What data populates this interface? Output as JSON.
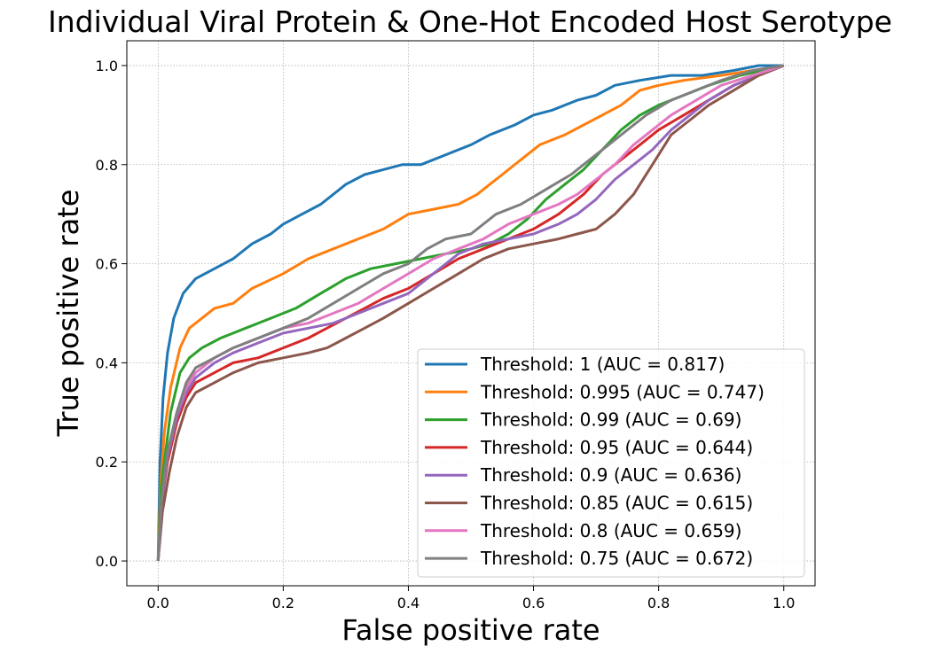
{
  "chart_data": {
    "type": "line",
    "title": "Individual Viral Protein & One-Hot Encoded Host Serotype",
    "xlabel": "False positive rate",
    "ylabel": "True positive rate",
    "xlim": [
      -0.05,
      1.05
    ],
    "ylim": [
      -0.05,
      1.05
    ],
    "x_ticks": [
      "0.0",
      "0.2",
      "0.4",
      "0.6",
      "0.8",
      "1.0"
    ],
    "y_ticks": [
      "0.0",
      "0.2",
      "0.4",
      "0.6",
      "0.8",
      "1.0"
    ],
    "grid": true,
    "legend_position": "lower right",
    "series": [
      {
        "name": "Threshold: 1 (AUC = 0.817)",
        "color": "#1f77b4",
        "points": [
          [
            0,
            0
          ],
          [
            0.003,
            0.2
          ],
          [
            0.008,
            0.33
          ],
          [
            0.015,
            0.42
          ],
          [
            0.025,
            0.49
          ],
          [
            0.04,
            0.54
          ],
          [
            0.06,
            0.57
          ],
          [
            0.09,
            0.59
          ],
          [
            0.12,
            0.61
          ],
          [
            0.15,
            0.64
          ],
          [
            0.18,
            0.66
          ],
          [
            0.2,
            0.68
          ],
          [
            0.23,
            0.7
          ],
          [
            0.26,
            0.72
          ],
          [
            0.28,
            0.74
          ],
          [
            0.3,
            0.76
          ],
          [
            0.33,
            0.78
          ],
          [
            0.36,
            0.79
          ],
          [
            0.39,
            0.8
          ],
          [
            0.42,
            0.8
          ],
          [
            0.44,
            0.81
          ],
          [
            0.46,
            0.82
          ],
          [
            0.5,
            0.84
          ],
          [
            0.53,
            0.86
          ],
          [
            0.57,
            0.88
          ],
          [
            0.6,
            0.9
          ],
          [
            0.63,
            0.91
          ],
          [
            0.67,
            0.93
          ],
          [
            0.7,
            0.94
          ],
          [
            0.73,
            0.96
          ],
          [
            0.77,
            0.97
          ],
          [
            0.82,
            0.98
          ],
          [
            0.87,
            0.98
          ],
          [
            0.92,
            0.99
          ],
          [
            0.96,
            1.0
          ],
          [
            1,
            1
          ]
        ]
      },
      {
        "name": "Threshold: 0.995 (AUC = 0.747)",
        "color": "#ff7f0e",
        "points": [
          [
            0,
            0
          ],
          [
            0.004,
            0.15
          ],
          [
            0.01,
            0.26
          ],
          [
            0.02,
            0.35
          ],
          [
            0.035,
            0.43
          ],
          [
            0.05,
            0.47
          ],
          [
            0.07,
            0.49
          ],
          [
            0.09,
            0.51
          ],
          [
            0.12,
            0.52
          ],
          [
            0.15,
            0.55
          ],
          [
            0.2,
            0.58
          ],
          [
            0.24,
            0.61
          ],
          [
            0.28,
            0.63
          ],
          [
            0.32,
            0.65
          ],
          [
            0.36,
            0.67
          ],
          [
            0.4,
            0.7
          ],
          [
            0.44,
            0.71
          ],
          [
            0.48,
            0.72
          ],
          [
            0.51,
            0.74
          ],
          [
            0.53,
            0.76
          ],
          [
            0.55,
            0.78
          ],
          [
            0.58,
            0.81
          ],
          [
            0.61,
            0.84
          ],
          [
            0.65,
            0.86
          ],
          [
            0.68,
            0.88
          ],
          [
            0.71,
            0.9
          ],
          [
            0.74,
            0.92
          ],
          [
            0.77,
            0.95
          ],
          [
            0.8,
            0.96
          ],
          [
            0.84,
            0.97
          ],
          [
            0.9,
            0.98
          ],
          [
            0.95,
            0.99
          ],
          [
            1,
            1
          ]
        ]
      },
      {
        "name": "Threshold: 0.99 (AUC = 0.69)",
        "color": "#2ca02c",
        "points": [
          [
            0,
            0
          ],
          [
            0.005,
            0.15
          ],
          [
            0.012,
            0.22
          ],
          [
            0.02,
            0.3
          ],
          [
            0.035,
            0.38
          ],
          [
            0.05,
            0.41
          ],
          [
            0.07,
            0.43
          ],
          [
            0.1,
            0.45
          ],
          [
            0.14,
            0.47
          ],
          [
            0.18,
            0.49
          ],
          [
            0.22,
            0.51
          ],
          [
            0.26,
            0.54
          ],
          [
            0.3,
            0.57
          ],
          [
            0.34,
            0.59
          ],
          [
            0.38,
            0.6
          ],
          [
            0.42,
            0.61
          ],
          [
            0.46,
            0.62
          ],
          [
            0.5,
            0.63
          ],
          [
            0.53,
            0.64
          ],
          [
            0.56,
            0.66
          ],
          [
            0.59,
            0.69
          ],
          [
            0.62,
            0.73
          ],
          [
            0.65,
            0.76
          ],
          [
            0.68,
            0.79
          ],
          [
            0.71,
            0.83
          ],
          [
            0.74,
            0.87
          ],
          [
            0.77,
            0.9
          ],
          [
            0.8,
            0.92
          ],
          [
            0.84,
            0.94
          ],
          [
            0.88,
            0.96
          ],
          [
            0.93,
            0.98
          ],
          [
            1,
            1
          ]
        ]
      },
      {
        "name": "Threshold: 0.95 (AUC = 0.644)",
        "color": "#d62728",
        "points": [
          [
            0,
            0
          ],
          [
            0.006,
            0.12
          ],
          [
            0.015,
            0.2
          ],
          [
            0.03,
            0.28
          ],
          [
            0.045,
            0.33
          ],
          [
            0.06,
            0.36
          ],
          [
            0.09,
            0.38
          ],
          [
            0.12,
            0.4
          ],
          [
            0.16,
            0.41
          ],
          [
            0.2,
            0.43
          ],
          [
            0.24,
            0.45
          ],
          [
            0.27,
            0.47
          ],
          [
            0.3,
            0.49
          ],
          [
            0.33,
            0.51
          ],
          [
            0.36,
            0.53
          ],
          [
            0.4,
            0.55
          ],
          [
            0.44,
            0.58
          ],
          [
            0.48,
            0.61
          ],
          [
            0.52,
            0.63
          ],
          [
            0.56,
            0.65
          ],
          [
            0.6,
            0.67
          ],
          [
            0.64,
            0.7
          ],
          [
            0.68,
            0.74
          ],
          [
            0.71,
            0.78
          ],
          [
            0.74,
            0.81
          ],
          [
            0.77,
            0.84
          ],
          [
            0.8,
            0.87
          ],
          [
            0.84,
            0.9
          ],
          [
            0.88,
            0.93
          ],
          [
            0.92,
            0.96
          ],
          [
            0.96,
            0.98
          ],
          [
            1,
            1
          ]
        ]
      },
      {
        "name": "Threshold: 0.9 (AUC = 0.636)",
        "color": "#9467bd",
        "points": [
          [
            0,
            0
          ],
          [
            0.006,
            0.12
          ],
          [
            0.015,
            0.21
          ],
          [
            0.03,
            0.29
          ],
          [
            0.045,
            0.34
          ],
          [
            0.06,
            0.37
          ],
          [
            0.09,
            0.4
          ],
          [
            0.12,
            0.42
          ],
          [
            0.16,
            0.44
          ],
          [
            0.2,
            0.46
          ],
          [
            0.24,
            0.47
          ],
          [
            0.28,
            0.48
          ],
          [
            0.32,
            0.5
          ],
          [
            0.36,
            0.52
          ],
          [
            0.4,
            0.54
          ],
          [
            0.44,
            0.58
          ],
          [
            0.48,
            0.62
          ],
          [
            0.52,
            0.64
          ],
          [
            0.56,
            0.65
          ],
          [
            0.6,
            0.66
          ],
          [
            0.64,
            0.68
          ],
          [
            0.67,
            0.7
          ],
          [
            0.7,
            0.73
          ],
          [
            0.73,
            0.77
          ],
          [
            0.76,
            0.8
          ],
          [
            0.79,
            0.83
          ],
          [
            0.82,
            0.87
          ],
          [
            0.85,
            0.9
          ],
          [
            0.88,
            0.93
          ],
          [
            0.92,
            0.96
          ],
          [
            0.96,
            0.98
          ],
          [
            1,
            1
          ]
        ]
      },
      {
        "name": "Threshold: 0.85 (AUC = 0.615)",
        "color": "#8c564b",
        "points": [
          [
            0,
            0
          ],
          [
            0.007,
            0.1
          ],
          [
            0.018,
            0.18
          ],
          [
            0.03,
            0.25
          ],
          [
            0.045,
            0.31
          ],
          [
            0.06,
            0.34
          ],
          [
            0.09,
            0.36
          ],
          [
            0.12,
            0.38
          ],
          [
            0.16,
            0.4
          ],
          [
            0.2,
            0.41
          ],
          [
            0.24,
            0.42
          ],
          [
            0.27,
            0.43
          ],
          [
            0.3,
            0.45
          ],
          [
            0.33,
            0.47
          ],
          [
            0.36,
            0.49
          ],
          [
            0.4,
            0.52
          ],
          [
            0.44,
            0.55
          ],
          [
            0.48,
            0.58
          ],
          [
            0.52,
            0.61
          ],
          [
            0.56,
            0.63
          ],
          [
            0.6,
            0.64
          ],
          [
            0.64,
            0.65
          ],
          [
            0.67,
            0.66
          ],
          [
            0.7,
            0.67
          ],
          [
            0.73,
            0.7
          ],
          [
            0.76,
            0.74
          ],
          [
            0.79,
            0.8
          ],
          [
            0.82,
            0.86
          ],
          [
            0.85,
            0.89
          ],
          [
            0.88,
            0.92
          ],
          [
            0.92,
            0.95
          ],
          [
            0.96,
            0.98
          ],
          [
            1,
            1
          ]
        ]
      },
      {
        "name": "Threshold: 0.8 (AUC = 0.659)",
        "color": "#e377c2",
        "points": [
          [
            0,
            0
          ],
          [
            0.006,
            0.13
          ],
          [
            0.015,
            0.22
          ],
          [
            0.03,
            0.3
          ],
          [
            0.045,
            0.35
          ],
          [
            0.06,
            0.38
          ],
          [
            0.09,
            0.41
          ],
          [
            0.12,
            0.43
          ],
          [
            0.16,
            0.45
          ],
          [
            0.2,
            0.47
          ],
          [
            0.24,
            0.48
          ],
          [
            0.28,
            0.5
          ],
          [
            0.32,
            0.52
          ],
          [
            0.36,
            0.55
          ],
          [
            0.4,
            0.58
          ],
          [
            0.44,
            0.61
          ],
          [
            0.48,
            0.63
          ],
          [
            0.52,
            0.65
          ],
          [
            0.56,
            0.68
          ],
          [
            0.6,
            0.7
          ],
          [
            0.64,
            0.72
          ],
          [
            0.67,
            0.74
          ],
          [
            0.7,
            0.77
          ],
          [
            0.73,
            0.8
          ],
          [
            0.76,
            0.84
          ],
          [
            0.79,
            0.87
          ],
          [
            0.82,
            0.9
          ],
          [
            0.86,
            0.93
          ],
          [
            0.9,
            0.96
          ],
          [
            0.95,
            0.98
          ],
          [
            1,
            1
          ]
        ]
      },
      {
        "name": "Threshold: 0.75 (AUC = 0.672)",
        "color": "#7f7f7f",
        "points": [
          [
            0,
            0
          ],
          [
            0.006,
            0.13
          ],
          [
            0.015,
            0.22
          ],
          [
            0.03,
            0.3
          ],
          [
            0.045,
            0.36
          ],
          [
            0.06,
            0.39
          ],
          [
            0.09,
            0.41
          ],
          [
            0.12,
            0.43
          ],
          [
            0.16,
            0.45
          ],
          [
            0.2,
            0.47
          ],
          [
            0.24,
            0.49
          ],
          [
            0.28,
            0.52
          ],
          [
            0.32,
            0.55
          ],
          [
            0.36,
            0.58
          ],
          [
            0.4,
            0.6
          ],
          [
            0.43,
            0.63
          ],
          [
            0.46,
            0.65
          ],
          [
            0.5,
            0.66
          ],
          [
            0.54,
            0.7
          ],
          [
            0.58,
            0.72
          ],
          [
            0.62,
            0.75
          ],
          [
            0.66,
            0.78
          ],
          [
            0.69,
            0.81
          ],
          [
            0.72,
            0.84
          ],
          [
            0.75,
            0.87
          ],
          [
            0.78,
            0.9
          ],
          [
            0.82,
            0.93
          ],
          [
            0.86,
            0.95
          ],
          [
            0.9,
            0.97
          ],
          [
            0.95,
            0.99
          ],
          [
            1,
            1
          ]
        ]
      }
    ]
  }
}
